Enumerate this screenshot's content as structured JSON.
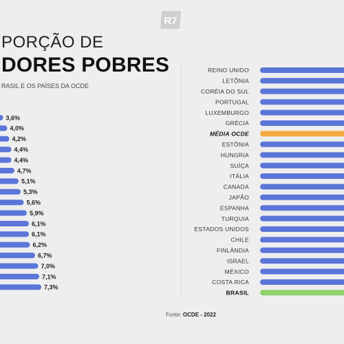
{
  "header": {
    "title_line1": "PORÇÃO DE",
    "title_line2": "DORES POBRES",
    "subtitle": "RASIL E OS PAÍSES DA OCDE",
    "logo_text": "R7",
    "source_label": "Fonte:",
    "source_value": "OCDE - 2022"
  },
  "colors": {
    "bar": "#5b76d8",
    "highlight_avg": "#f4a93e",
    "highlight_brazil": "#8fd16a",
    "text": "#222222"
  },
  "chart_data": [
    {
      "type": "bar",
      "orientation": "horizontal",
      "note": "left panel, partially cropped",
      "values": [
        3.6,
        4.0,
        4.2,
        4.4,
        4.4,
        4.7,
        5.1,
        5.3,
        5.6,
        5.9,
        6.1,
        6.1,
        6.2,
        6.7,
        7.0,
        7.1,
        7.3
      ],
      "value_labels": [
        "3,6%",
        "4,0%",
        "4,2%",
        "4,4%",
        "4,4%",
        "4,7%",
        "5,1%",
        "5,3%",
        "5,6%",
        "5,9%",
        "6,1%",
        "6,1%",
        "6,2%",
        "6,7%",
        "7,0%",
        "7,1%",
        "7,3%"
      ]
    },
    {
      "type": "bar",
      "orientation": "horizontal",
      "note": "right panel, bars cropped at right edge",
      "categories": [
        "REINO UNIDO",
        "LETÔNIA",
        "CORÉIA DO SUL",
        "PORTUGAL",
        "LUXEMBURGO",
        "GRÉCIA",
        "MÉDIA OCDE",
        "ESTÔNIA",
        "HUNGRIA",
        "SUÍÇA",
        "ITÁLIA",
        "CANADA",
        "JAPÃO",
        "ESPANHA",
        "TURQUIA",
        "ESTADOS UNIDOS",
        "CHILE",
        "FINLÂNDIA",
        "ISRAEL",
        "MÉXICO",
        "COSTA RICA",
        "BRASIL"
      ],
      "highlight": {
        "MÉDIA OCDE": "avg",
        "BRASIL": "brazil"
      }
    }
  ]
}
